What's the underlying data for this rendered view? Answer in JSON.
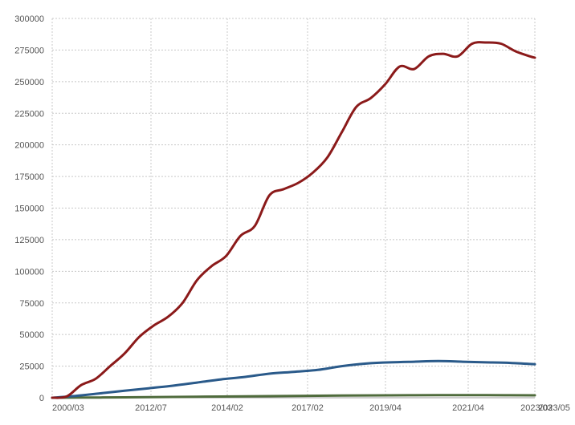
{
  "chart_data": {
    "type": "line",
    "title": "",
    "xlabel": "",
    "ylabel": "",
    "ylim": [
      0,
      300000
    ],
    "y_ticks": [
      "0",
      "25000",
      "50000",
      "75000",
      "100000",
      "125000",
      "150000",
      "175000",
      "200000",
      "225000",
      "250000",
      "275000",
      "300000"
    ],
    "x_tick_labels": [
      "2000/03",
      "2012/07",
      "2014/02",
      "2017/02",
      "2019/04",
      "2021/04",
      "2023/03",
      "2023/05"
    ],
    "grid": true,
    "colors": {
      "series_1": "#8b1a1a",
      "series_2": "#2a5a8a",
      "series_3": "#4f6b3c"
    },
    "series": [
      {
        "x": [
          0,
          3,
          6,
          9,
          12,
          15,
          18,
          21,
          24,
          27,
          30,
          33,
          36,
          39,
          42,
          45,
          48,
          51,
          54,
          57,
          60,
          63,
          66,
          69,
          72,
          75,
          78,
          81,
          84,
          87,
          90,
          93,
          96,
          99,
          100
        ],
        "values": [
          0,
          1000,
          10000,
          15000,
          25000,
          35000,
          48000,
          57000,
          64000,
          75000,
          93000,
          104000,
          112000,
          128000,
          136000,
          160000,
          165000,
          170000,
          178000,
          190000,
          210000,
          230000,
          237000,
          248000,
          262000,
          260000,
          270000,
          272000,
          270000,
          280000,
          281000,
          280000,
          274000,
          270000,
          269000
        ]
      },
      {
        "x": [
          0,
          5,
          10,
          15,
          20,
          25,
          30,
          35,
          40,
          45,
          50,
          55,
          60,
          65,
          70,
          75,
          80,
          85,
          90,
          95,
          100
        ],
        "values": [
          0,
          1500,
          3500,
          5500,
          7500,
          9500,
          12000,
          14500,
          16500,
          19000,
          20500,
          22000,
          25000,
          27000,
          28000,
          28500,
          29000,
          28500,
          28000,
          27500,
          26500
        ]
      },
      {
        "x": [
          0,
          10,
          20,
          30,
          40,
          50,
          60,
          70,
          80,
          90,
          100
        ],
        "values": [
          0,
          200,
          500,
          800,
          1100,
          1400,
          1700,
          1900,
          2000,
          2000,
          1900
        ]
      }
    ]
  }
}
